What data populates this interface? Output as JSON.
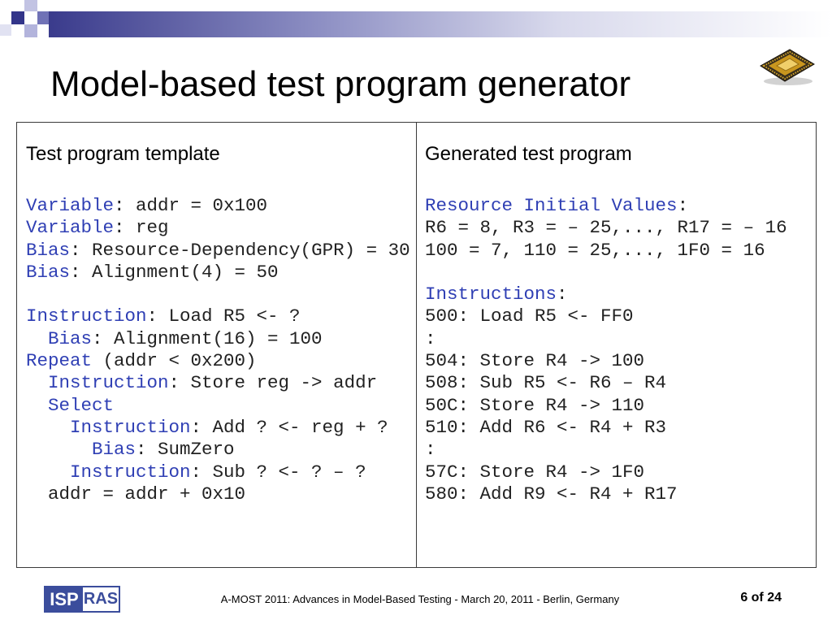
{
  "slide": {
    "title": "Model-based test program generator"
  },
  "template": {
    "heading": "Test program template",
    "lines": [
      {
        "kw": "Variable",
        "text": ": addr = 0x100"
      },
      {
        "kw": "Variable",
        "text": ": reg"
      },
      {
        "kw": "Bias",
        "text": ": Resource-Dependency(GPR) = 30"
      },
      {
        "kw": "Bias",
        "text": ": Alignment(4) = 50"
      },
      {
        "kw": "Instruction",
        "text": ": Load R5 <- ?"
      },
      {
        "kw": "Bias",
        "text": ": Alignment(16) = 100"
      },
      {
        "kw": "Repeat",
        "text": " (addr < 0x200)"
      },
      {
        "kw": "Instruction",
        "text": ": Store reg -> addr"
      },
      {
        "kw": "Select"
      },
      {
        "kw": "Instruction",
        "text": ": Add ? <- reg + ?"
      },
      {
        "kw": "Bias",
        "text": ": SumZero"
      },
      {
        "kw": "Instruction",
        "text": ": Sub ? <- ? – ?"
      },
      {
        "text": "addr = addr + 0x10"
      }
    ]
  },
  "generated": {
    "heading": "Generated test program",
    "lines": [
      {
        "kw": "Resource Initial Values",
        "text": ":"
      },
      {
        "text": "R6 = 8, R3 = – 25,..., R17 = – 16"
      },
      {
        "text": "100 = 7, 110 = 25,..., 1F0 = 16"
      },
      {
        "kw": "Instructions",
        "text": ":"
      },
      {
        "text": "500: Load R5 <- FF0"
      },
      {
        "text": ":"
      },
      {
        "text": "504: Store R4 -> 100"
      },
      {
        "text": "508: Sub R5 <- R6 – R4"
      },
      {
        "text": "50C: Store R4 -> 110"
      },
      {
        "text": "510: Add R6 <- R4 + R3"
      },
      {
        "text": ":"
      },
      {
        "text": "57C: Store R4 -> 1F0"
      },
      {
        "text": "580: Add R9 <- R4 + R17"
      }
    ]
  },
  "footer": {
    "logo": {
      "left": "ISP",
      "right": "RAS"
    },
    "text": "A-MOST 2011: Advances in Model-Based Testing - March 20, 2011 - Berlin, Germany",
    "page": "6 of 24"
  },
  "icons": {
    "corner_decoration": "blue-squares-decoration",
    "chip": "cpu-chip-icon"
  },
  "colors": {
    "keyword": "#2f3fb4",
    "text": "#222222",
    "title": "#000000",
    "logo_blue": "#3b4d9c",
    "header_bar": "#33358a"
  }
}
